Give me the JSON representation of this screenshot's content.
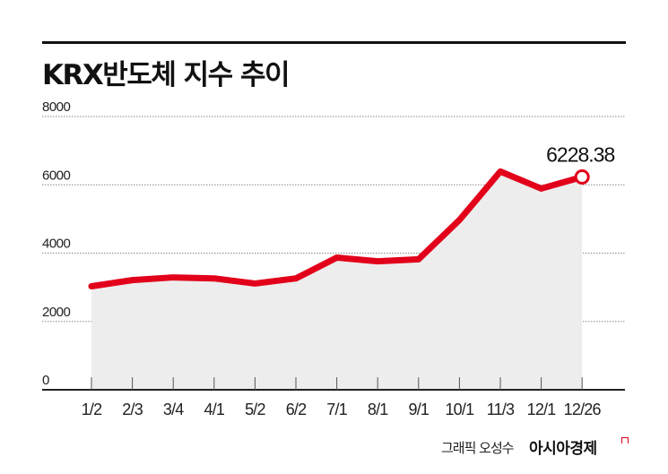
{
  "title": "KRX반도체 지수 추이",
  "credit": "그래픽 오성수",
  "brand": "아시아경제",
  "colors": {
    "line": "#e2001a",
    "area": "#ededed",
    "grid": "#888888",
    "axis": "#222222",
    "text": "#111111"
  },
  "chart_data": {
    "type": "line",
    "title": "KRX반도체 지수 추이",
    "xlabel": "",
    "ylabel": "",
    "categories": [
      "1/2",
      "2/3",
      "3/4",
      "4/1",
      "5/2",
      "6/2",
      "7/1",
      "8/1",
      "9/1",
      "10/1",
      "11/3",
      "12/1",
      "12/26"
    ],
    "series": [
      {
        "name": "KRX반도체 지수",
        "values": [
          3030,
          3210,
          3290,
          3260,
          3110,
          3260,
          3870,
          3760,
          3820,
          4970,
          6390,
          5890,
          6228.38
        ]
      }
    ],
    "yticks": [
      0,
      2000,
      4000,
      6000,
      8000
    ],
    "ytick_labels": [
      "0",
      "2000",
      "4000",
      "6000",
      "8000"
    ],
    "ylim": [
      0,
      8000
    ],
    "grid": true,
    "fill_under_line": true,
    "annotations": [
      {
        "category": "12/26",
        "value": 6228.38,
        "label": "6228.38",
        "marker": "hollow-circle"
      }
    ],
    "legend": null
  }
}
